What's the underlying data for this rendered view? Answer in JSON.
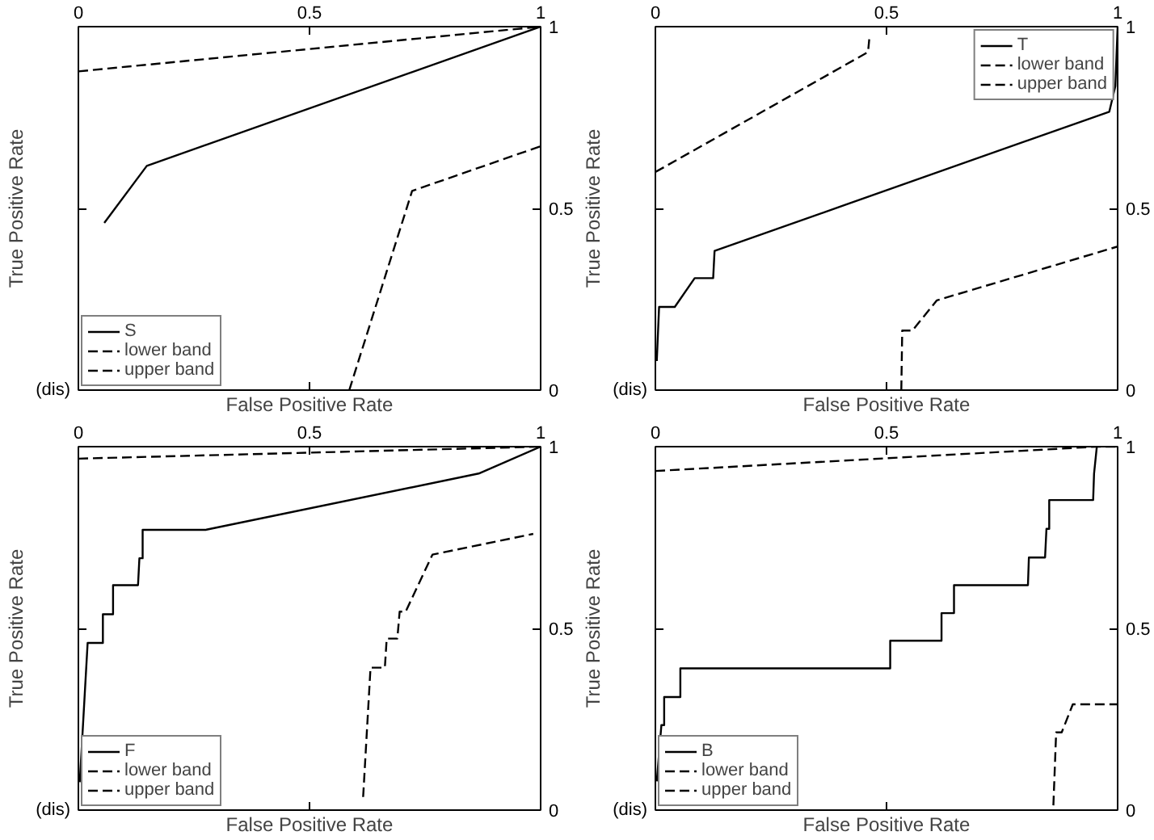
{
  "chart_data": [
    {
      "type": "line",
      "xlabel": "False Positive Rate",
      "ylabel": "True Positive Rate",
      "annotations": [
        "(dis)"
      ],
      "xlim": [
        0,
        1
      ],
      "xticks": [
        0,
        0.5,
        1
      ],
      "ylim": [
        0,
        1
      ],
      "yticks": [
        0,
        0.5,
        1
      ],
      "grid": false,
      "legend": "bottom left",
      "marker": "none",
      "series": [
        {
          "name": "S",
          "color": "#000000",
          "line_style": "solid",
          "x": [
            0.056,
            0.148,
            1
          ],
          "values": [
            0.46,
            0.617,
            1
          ]
        },
        {
          "name": "lower band",
          "color": "#000000",
          "line_style": "dashed",
          "x": [
            0.586,
            0.722,
            1
          ],
          "values": [
            0,
            0.548,
            0.671
          ]
        },
        {
          "name": "upper band",
          "color": "#000000",
          "line_style": "dashed",
          "x": [
            0,
            1
          ],
          "values": [
            0.877,
            1
          ]
        }
      ]
    },
    {
      "type": "line",
      "xlabel": "False Positive Rate",
      "ylabel": "True Positive Rate",
      "annotations": [
        "(dis)"
      ],
      "xlim": [
        0,
        1
      ],
      "xticks": [
        0,
        0.5,
        1
      ],
      "ylim": [
        0,
        1
      ],
      "yticks": [
        0,
        0.5,
        1
      ],
      "grid": false,
      "legend": "top right",
      "marker": "none",
      "series": [
        {
          "name": "T",
          "color": "#000000",
          "line_style": "solid",
          "x": [
            0.003,
            0.008,
            0.042,
            0.085,
            0.125,
            0.128,
            0.982,
            0.995,
            1
          ],
          "values": [
            0.08,
            0.229,
            0.229,
            0.308,
            0.308,
            0.383,
            0.766,
            0.836,
            1
          ]
        },
        {
          "name": "lower band",
          "color": "#000000",
          "line_style": "dashed",
          "x": [
            0.532,
            0.534,
            0.556,
            0.609,
            1
          ],
          "values": [
            0,
            0.164,
            0.164,
            0.247,
            0.395
          ]
        },
        {
          "name": "upper band",
          "color": "#000000",
          "line_style": "dashed",
          "x": [
            0,
            0.46,
            0.463
          ],
          "values": [
            0.6,
            0.93,
            0.97
          ]
        }
      ]
    },
    {
      "type": "line",
      "xlabel": "False Positive Rate",
      "ylabel": "True Positive Rate",
      "annotations": [
        "(dis)"
      ],
      "xlim": [
        0,
        1
      ],
      "xticks": [
        0,
        0.5,
        1
      ],
      "ylim": [
        0,
        1
      ],
      "yticks": [
        0,
        0.5,
        1
      ],
      "grid": false,
      "legend": "bottom left",
      "marker": "none",
      "series": [
        {
          "name": "F",
          "color": "#000000",
          "line_style": "solid",
          "x": [
            0.003,
            0.02,
            0.053,
            0.053,
            0.075,
            0.075,
            0.129,
            0.132,
            0.139,
            0.139,
            0.275,
            0.866,
            1
          ],
          "values": [
            0.077,
            0.46,
            0.46,
            0.539,
            0.539,
            0.619,
            0.619,
            0.693,
            0.693,
            0.771,
            0.771,
            0.926,
            1
          ]
        },
        {
          "name": "lower band",
          "color": "#000000",
          "line_style": "dashed",
          "x": [
            0.616,
            0.632,
            0.663,
            0.667,
            0.69,
            0.695,
            0.708,
            0.766,
            0.984
          ],
          "values": [
            0.036,
            0.392,
            0.392,
            0.472,
            0.472,
            0.546,
            0.546,
            0.703,
            0.76
          ]
        },
        {
          "name": "upper band",
          "color": "#000000",
          "line_style": "dashed",
          "x": [
            0,
            1
          ],
          "values": [
            0.967,
            1
          ]
        }
      ]
    },
    {
      "type": "line",
      "xlabel": "False Positive Rate",
      "ylabel": "True Positive Rate",
      "annotations": [
        "(dis)"
      ],
      "xlim": [
        0,
        1
      ],
      "xticks": [
        0,
        0.5,
        1
      ],
      "ylim": [
        0,
        1
      ],
      "yticks": [
        0,
        0.5,
        1
      ],
      "grid": false,
      "legend": "bottom left",
      "marker": "none",
      "series": [
        {
          "name": "B",
          "color": "#000000",
          "line_style": "solid",
          "x": [
            0.003,
            0.013,
            0.019,
            0.019,
            0.054,
            0.054,
            0.508,
            0.508,
            0.619,
            0.619,
            0.646,
            0.646,
            0.806,
            0.808,
            0.843,
            0.846,
            0.852,
            0.852,
            0.947,
            0.949,
            0.955
          ],
          "values": [
            0.079,
            0.234,
            0.234,
            0.311,
            0.311,
            0.39,
            0.39,
            0.466,
            0.466,
            0.542,
            0.542,
            0.619,
            0.619,
            0.695,
            0.695,
            0.774,
            0.774,
            0.853,
            0.853,
            0.926,
            1
          ]
        },
        {
          "name": "lower band",
          "color": "#000000",
          "line_style": "dashed",
          "x": [
            0.861,
            0.867,
            0.879,
            0.903,
            1
          ],
          "values": [
            0.013,
            0.214,
            0.214,
            0.291,
            0.291
          ]
        },
        {
          "name": "upper band",
          "color": "#000000",
          "line_style": "dashed",
          "x": [
            0,
            0.955,
            1
          ],
          "values": [
            0.933,
            1,
            1
          ]
        }
      ]
    }
  ]
}
